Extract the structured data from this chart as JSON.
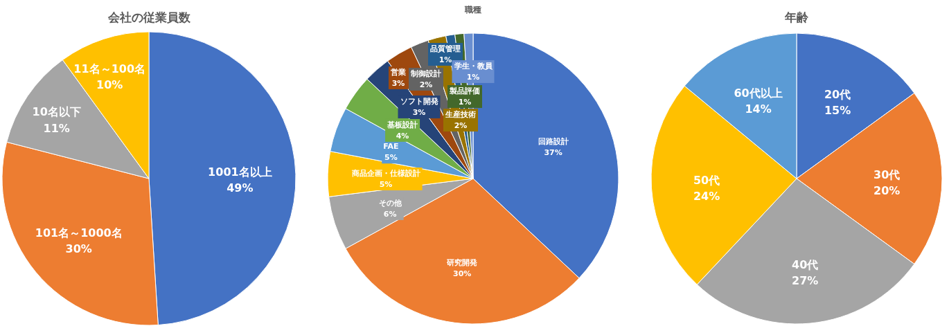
{
  "chart_data": [
    {
      "type": "pie",
      "title": "会社の従業員数",
      "categories": [
        "1001名以上",
        "101名～1000名",
        "10名以下",
        "11名～100名"
      ],
      "values": [
        49,
        30,
        11,
        10
      ],
      "value_labels": [
        "49%",
        "30%",
        "11%",
        "10%"
      ],
      "colors": [
        "#4472c4",
        "#ed7d31",
        "#a5a5a5",
        "#ffc000"
      ]
    },
    {
      "type": "pie",
      "title": "職種",
      "categories": [
        "回路設計",
        "研究開発",
        "その他",
        "商品企画・仕様設計",
        "FAE",
        "基板設計",
        "ソフト開発",
        "営業",
        "制御設計",
        "生産技術",
        "品質管理",
        "製品評価",
        "学生・教員"
      ],
      "values": [
        37,
        30,
        6,
        5,
        5,
        4,
        3,
        3,
        2,
        2,
        1,
        1,
        1
      ],
      "value_labels": [
        "37%",
        "30%",
        "6%",
        "5%",
        "5%",
        "4%",
        "3%",
        "3%",
        "2%",
        "2%",
        "1%",
        "1%",
        "1%"
      ],
      "colors": [
        "#4472c4",
        "#ed7d31",
        "#a5a5a5",
        "#ffc000",
        "#5b9bd5",
        "#70ad47",
        "#264478",
        "#9e480e",
        "#636363",
        "#997300",
        "#255e91",
        "#43682b",
        "#698ed0"
      ]
    },
    {
      "type": "pie",
      "title": "年齢",
      "categories": [
        "20代",
        "30代",
        "40代",
        "50代",
        "60代以上"
      ],
      "values": [
        15,
        20,
        27,
        24,
        14
      ],
      "value_labels": [
        "15%",
        "20%",
        "27%",
        "24%",
        "14%"
      ],
      "colors": [
        "#4472c4",
        "#ed7d31",
        "#a5a5a5",
        "#ffc000",
        "#5b9bd5"
      ]
    }
  ]
}
